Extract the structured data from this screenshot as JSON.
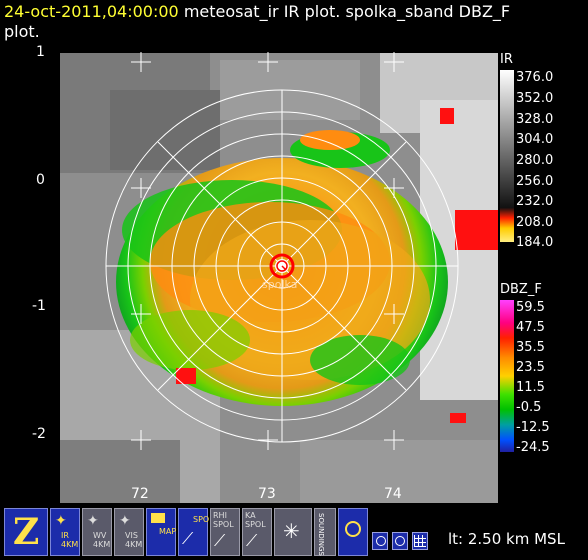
{
  "title": {
    "timestamp": "24-oct-2011,04:00:00",
    "rest_line1": "meteosat_ir IR  plot.  spolka_sband DBZ_F",
    "line2": "plot."
  },
  "y_ticks": [
    "1",
    "0",
    "-1",
    "-2"
  ],
  "x_ticks": [
    "72",
    "73",
    "74"
  ],
  "radar_label": "spolka",
  "colorbars": [
    {
      "name": "IR",
      "values": [
        "376.0",
        "352.0",
        "328.0",
        "304.0",
        "280.0",
        "256.0",
        "232.0",
        "208.0",
        "184.0"
      ]
    },
    {
      "name": "DBZ_F",
      "values": [
        "59.5",
        "47.5",
        "35.5",
        "23.5",
        "11.5",
        "-0.5",
        "-12.5",
        "-24.5"
      ]
    }
  ],
  "toolbar": {
    "buttons": [
      {
        "icon": "zoom-z-icon",
        "label": ""
      },
      {
        "icon": "ir-satellite-icon",
        "label": "IR 4KM"
      },
      {
        "icon": "wv-satellite-icon",
        "label": "WV 4KM"
      },
      {
        "icon": "vis-satellite-icon",
        "label": "VIS 4KM"
      },
      {
        "icon": "map-icon",
        "label": "MAP"
      },
      {
        "icon": "spol-icon",
        "label": "SPOL"
      },
      {
        "icon": "rhi-spol-icon",
        "label": "RHI SPOL"
      },
      {
        "icon": "ka-spol-icon",
        "label": "KA SPOL"
      },
      {
        "icon": "sounding-icon",
        "label": ""
      },
      {
        "icon": "sounding-text-icon",
        "label": "SOUNDINGS"
      },
      {
        "icon": "target-icon",
        "label": ""
      }
    ],
    "altitude": "lt: 2.50 km MSL"
  },
  "colors": {
    "background": "#000000",
    "title_timestamp": "#ffff33",
    "button": "#1c2caa"
  }
}
